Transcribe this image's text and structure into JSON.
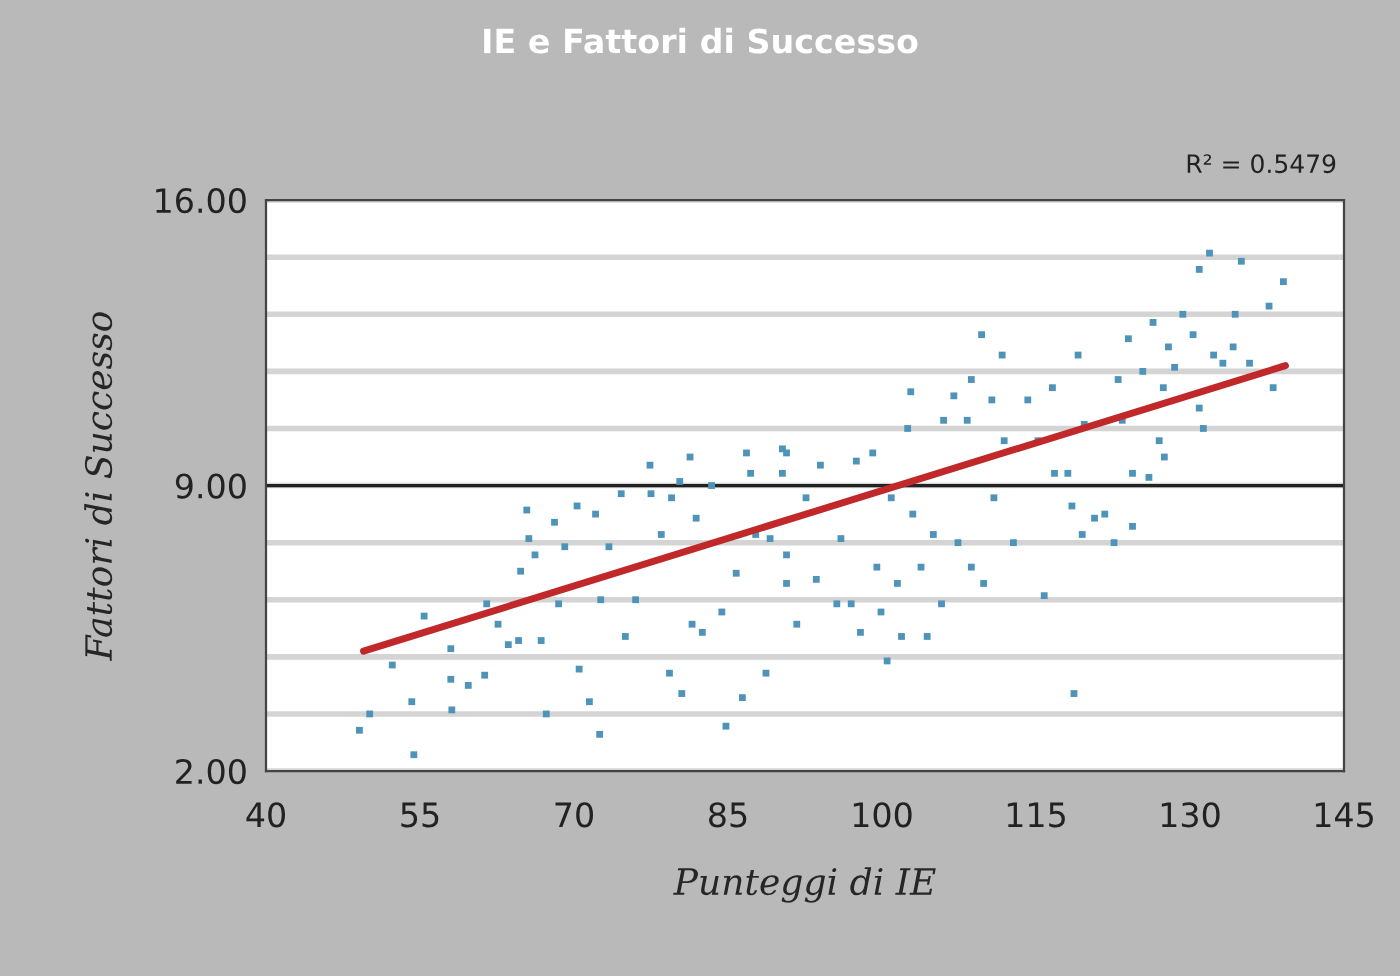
{
  "chart_data": {
    "type": "scatter",
    "title": "IE e Fattori di Successo",
    "xlabel": "Punteggi di IE",
    "ylabel": "Fattori di Successo",
    "annotations": [
      "R² = 0.5479"
    ],
    "xlim": [
      40,
      145
    ],
    "xticks": [
      40,
      55,
      70,
      85,
      100,
      115,
      130,
      145
    ],
    "ylim": [
      2,
      16
    ],
    "yticks": [
      {
        "value": 2,
        "label": "2.00"
      },
      {
        "value": 3.4,
        "label": null
      },
      {
        "value": 4.8,
        "label": null
      },
      {
        "value": 6.2,
        "label": null
      },
      {
        "value": 7.6,
        "label": null
      },
      {
        "value": 9,
        "label": "9.00"
      },
      {
        "value": 10.4,
        "label": null
      },
      {
        "value": 11.8,
        "label": null
      },
      {
        "value": 13.2,
        "label": null
      },
      {
        "value": 14.6,
        "label": null
      },
      {
        "value": 16,
        "label": "16.00"
      }
    ],
    "grid": "y",
    "legend": false,
    "ref_lines": [
      {
        "axis": "y",
        "value": 9,
        "color": "#222222"
      }
    ],
    "series": [
      {
        "marker": "square",
        "color": "#4f93b8",
        "x": [
          49.1,
          50.1,
          52.3,
          54.2,
          54.4,
          55.4,
          58,
          58.1,
          58,
          59.7,
          61.3,
          61.5,
          62.6,
          63.6,
          64.6,
          64.8,
          65.4,
          65.6,
          66.2,
          66.8,
          67.3,
          68.1,
          68.5,
          69.1,
          70.3,
          70.5,
          71.5,
          72.1,
          72.5,
          72.6,
          73.4,
          74.6,
          75.0,
          76,
          77.4,
          77.5,
          78.5,
          79.3,
          79.5,
          80.3,
          80.5,
          81.3,
          81.5,
          81.9,
          82.5,
          83.4,
          84.4,
          84.8,
          85.8,
          86.4,
          86.8,
          87.2,
          87.7,
          88.7,
          89.1,
          90.3,
          90.7,
          90.3,
          90.7,
          90.7,
          91.7,
          92.6,
          93.6,
          94.0,
          95.6,
          96.0,
          97.0,
          97.5,
          97.9,
          99.1,
          99.5,
          99.9,
          100.5,
          100.9,
          101.5,
          101.9,
          102.5,
          102.8,
          103.0,
          103.8,
          104.4,
          105.0,
          105.8,
          106.0,
          107.0,
          107.4,
          108.3,
          108.7,
          108.7,
          109.7,
          109.9,
          110.7,
          110.9,
          111.7,
          111.9,
          112.8,
          114.2,
          115.2,
          115.8,
          116.6,
          116.8,
          118.1,
          118.5,
          118.7,
          119.1,
          119.5,
          119.7,
          120.7,
          121.7,
          122.6,
          123.0,
          123.4,
          124.0,
          124.4,
          124.4,
          125.4,
          126.0,
          126.4,
          127.0,
          127.4,
          127.5,
          127.9,
          128.5,
          129.3,
          130.3,
          130.9,
          130.9,
          131.3,
          131.9,
          132.3,
          133.2,
          134.2,
          134.4,
          135.0,
          135.8,
          137.7,
          138.1,
          139.1
        ],
        "values": [
          3.0,
          3.4,
          4.6,
          3.7,
          2.4,
          5.8,
          5.0,
          3.5,
          4.25,
          4.1,
          4.35,
          6.1,
          5.6,
          5.1,
          5.2,
          6.9,
          8.4,
          7.7,
          7.3,
          5.2,
          3.4,
          8.1,
          6.1,
          7.5,
          8.5,
          4.5,
          3.7,
          8.3,
          2.9,
          6.2,
          7.5,
          8.8,
          5.3,
          6.2,
          9.5,
          8.8,
          7.8,
          4.4,
          8.7,
          9.1,
          3.9,
          9.7,
          5.6,
          8.2,
          5.4,
          9.0,
          5.9,
          3.1,
          6.85,
          3.8,
          9.8,
          9.3,
          7.8,
          4.4,
          7.7,
          9.9,
          7.3,
          9.3,
          9.8,
          6.6,
          5.6,
          8.7,
          6.7,
          9.5,
          6.1,
          7.7,
          6.1,
          9.6,
          5.4,
          9.8,
          7.0,
          5.9,
          4.7,
          8.7,
          6.6,
          5.3,
          10.4,
          11.3,
          8.3,
          7.0,
          5.3,
          7.8,
          6.1,
          10.6,
          11.2,
          7.6,
          10.6,
          7.0,
          11.6,
          12.7,
          6.6,
          11.1,
          8.7,
          12.2,
          10.1,
          7.6,
          11.1,
          10.1,
          6.3,
          11.4,
          9.3,
          9.3,
          8.5,
          3.9,
          12.2,
          7.8,
          10.5,
          8.2,
          8.3,
          7.6,
          11.6,
          10.6,
          12.6,
          9.3,
          8.0,
          11.8,
          9.2,
          13.0,
          10.1,
          11.4,
          9.7,
          12.4,
          11.9,
          13.2,
          12.7,
          10.9,
          14.3,
          10.4,
          14.7,
          12.2,
          12.0,
          12.4,
          13.2,
          14.5,
          12.0,
          13.4,
          11.4,
          14.0
        ]
      },
      {
        "type": "line",
        "color": "#c0282a",
        "x": [
          49.5,
          139.3
        ],
        "values": [
          4.94,
          11.94
        ]
      }
    ]
  }
}
